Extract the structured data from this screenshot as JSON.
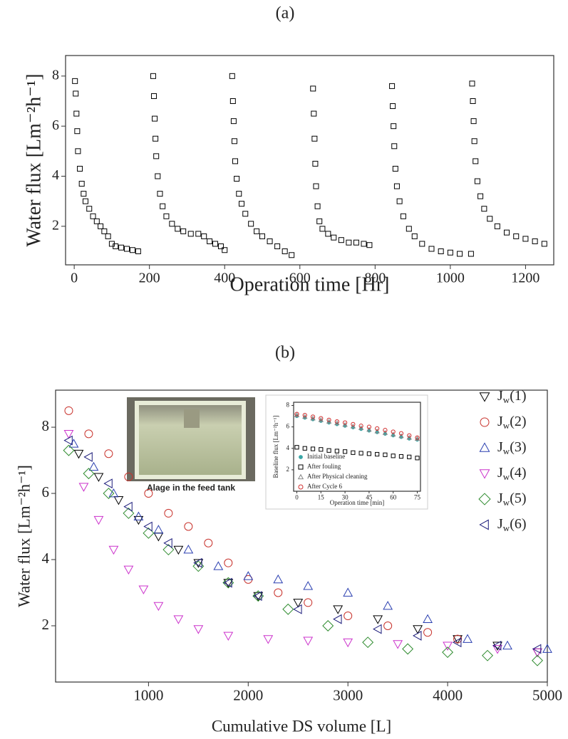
{
  "chart_data": [
    {
      "type": "scatter",
      "panel_label": "(a)",
      "xlabel": "Operation time [Hr]",
      "ylabel": "Water flux [Lm⁻²h⁻¹]",
      "xlim": [
        -23,
        1275
      ],
      "ylim": [
        0.46,
        8.82
      ],
      "xticks": [
        0,
        200,
        400,
        600,
        800,
        1000,
        1200
      ],
      "yticks": [
        2,
        4,
        6,
        8
      ],
      "grid": false,
      "series": [
        {
          "color": "#000000",
          "marker": "square",
          "x": [
            2,
            4,
            6,
            8,
            10,
            15,
            20,
            25,
            30,
            40,
            50,
            60,
            70,
            80,
            90,
            100,
            110,
            125,
            140,
            155,
            170
          ],
          "values": [
            7.8,
            7.3,
            6.5,
            5.8,
            5.0,
            4.3,
            3.7,
            3.3,
            3.0,
            2.7,
            2.4,
            2.2,
            2.0,
            1.8,
            1.6,
            1.3,
            1.2,
            1.15,
            1.1,
            1.05,
            1.0
          ]
        },
        {
          "color": "#000000",
          "marker": "square",
          "x": [
            210,
            212,
            214,
            216,
            218,
            222,
            228,
            235,
            245,
            260,
            275,
            290,
            310,
            330,
            345,
            360,
            375,
            390,
            400
          ],
          "values": [
            8.0,
            7.2,
            6.3,
            5.5,
            4.8,
            4.0,
            3.3,
            2.8,
            2.4,
            2.1,
            1.9,
            1.8,
            1.7,
            1.7,
            1.6,
            1.4,
            1.3,
            1.2,
            1.05
          ]
        },
        {
          "color": "#000000",
          "marker": "square",
          "x": [
            420,
            422,
            424,
            426,
            428,
            432,
            438,
            445,
            455,
            470,
            485,
            500,
            520,
            540,
            560,
            578
          ],
          "values": [
            8.0,
            7.0,
            6.2,
            5.4,
            4.6,
            3.9,
            3.3,
            2.9,
            2.5,
            2.1,
            1.8,
            1.6,
            1.4,
            1.2,
            1.0,
            0.85
          ]
        },
        {
          "color": "#000000",
          "marker": "square",
          "x": [
            635,
            637,
            639,
            641,
            643,
            647,
            652,
            660,
            675,
            690,
            710,
            730,
            750,
            770,
            785
          ],
          "values": [
            7.5,
            6.5,
            5.5,
            4.5,
            3.6,
            2.8,
            2.2,
            1.9,
            1.7,
            1.55,
            1.45,
            1.35,
            1.35,
            1.3,
            1.25
          ]
        },
        {
          "color": "#000000",
          "marker": "square",
          "x": [
            845,
            847,
            849,
            851,
            854,
            858,
            865,
            875,
            890,
            905,
            925,
            950,
            975,
            1000,
            1025,
            1055
          ],
          "values": [
            7.6,
            6.8,
            6.0,
            5.2,
            4.3,
            3.6,
            3.0,
            2.4,
            1.9,
            1.6,
            1.3,
            1.1,
            1.0,
            0.95,
            0.9,
            0.9
          ]
        },
        {
          "color": "#000000",
          "marker": "square",
          "x": [
            1058,
            1060,
            1062,
            1064,
            1067,
            1072,
            1080,
            1090,
            1105,
            1125,
            1150,
            1175,
            1200,
            1225,
            1250
          ],
          "values": [
            7.7,
            7.0,
            6.2,
            5.4,
            4.6,
            3.8,
            3.2,
            2.7,
            2.3,
            2.0,
            1.75,
            1.6,
            1.5,
            1.4,
            1.3
          ]
        }
      ]
    },
    {
      "type": "scatter",
      "panel_label": "(b)",
      "xlabel": "Cumulative DS volume [L]",
      "ylabel": "Water flux [Lm⁻²h⁻¹]",
      "annotation": "Alage in the feed tank",
      "xlim": [
        68,
        5000
      ],
      "ylim": [
        0.3,
        9.12
      ],
      "xticks": [
        1000,
        2000,
        3000,
        4000,
        5000
      ],
      "yticks": [
        2,
        4,
        6,
        8
      ],
      "grid": false,
      "series": [
        {
          "name": "Jw(1)",
          "color": "#000000",
          "marker": "triangle-down",
          "x": [
            300,
            500,
            700,
            900,
            1100,
            1300,
            1500,
            1800,
            2100,
            2500,
            2900,
            3300,
            3700,
            4100,
            4500,
            4900
          ],
          "values": [
            7.2,
            6.5,
            5.8,
            5.2,
            4.7,
            4.3,
            3.9,
            3.3,
            2.9,
            2.7,
            2.5,
            2.2,
            1.9,
            1.6,
            1.4,
            1.2
          ]
        },
        {
          "name": "Jw(2)",
          "color": "#c8322c",
          "marker": "circle",
          "x": [
            200,
            400,
            600,
            800,
            1000,
            1200,
            1400,
            1600,
            1800,
            2000,
            2300,
            2600,
            3000,
            3400,
            3800,
            4100
          ],
          "values": [
            8.5,
            7.8,
            7.2,
            6.5,
            6.0,
            5.4,
            5.0,
            4.5,
            3.9,
            3.4,
            3.0,
            2.7,
            2.3,
            2.0,
            1.8,
            1.6
          ]
        },
        {
          "name": "Jw(3)",
          "color": "#2a3fb0",
          "marker": "triangle-up",
          "x": [
            250,
            450,
            650,
            900,
            1100,
            1400,
            1700,
            2000,
            2300,
            2600,
            3000,
            3400,
            3800,
            4200,
            4600,
            5000
          ],
          "values": [
            7.5,
            6.8,
            6.0,
            5.3,
            4.9,
            4.3,
            3.8,
            3.5,
            3.4,
            3.2,
            3.0,
            2.6,
            2.2,
            1.6,
            1.4,
            1.3
          ]
        },
        {
          "name": "Jw(4)",
          "color": "#cc33cc",
          "marker": "triangle-down",
          "x": [
            200,
            350,
            500,
            650,
            800,
            950,
            1100,
            1300,
            1500,
            1800,
            2200,
            2600,
            3000,
            3500,
            4000,
            4500,
            4900
          ],
          "values": [
            7.8,
            6.2,
            5.2,
            4.3,
            3.7,
            3.1,
            2.6,
            2.2,
            1.9,
            1.7,
            1.6,
            1.55,
            1.5,
            1.45,
            1.4,
            1.3,
            1.2
          ]
        },
        {
          "name": "Jw(5)",
          "color": "#2e8b2e",
          "marker": "diamond",
          "x": [
            200,
            400,
            600,
            800,
            1000,
            1200,
            1500,
            1800,
            2100,
            2400,
            2800,
            3200,
            3600,
            4000,
            4400,
            4900
          ],
          "values": [
            7.3,
            6.6,
            6.0,
            5.4,
            4.8,
            4.3,
            3.8,
            3.3,
            2.9,
            2.5,
            2.0,
            1.5,
            1.3,
            1.2,
            1.1,
            0.95
          ]
        },
        {
          "name": "Jw(6)",
          "color": "#1a1a7a",
          "marker": "triangle-left",
          "x": [
            200,
            400,
            600,
            800,
            1000,
            1200,
            1500,
            1800,
            2100,
            2500,
            2900,
            3300,
            3700,
            4100,
            4500,
            4900
          ],
          "values": [
            7.6,
            7.1,
            6.3,
            5.6,
            5.0,
            4.5,
            3.9,
            3.3,
            2.9,
            2.5,
            2.2,
            1.9,
            1.7,
            1.5,
            1.4,
            1.3
          ]
        }
      ]
    },
    {
      "type": "scatter",
      "xlabel": "Operation time [min]",
      "ylabel": "Baseline flux [Lm⁻²h⁻¹]",
      "xlim": [
        -2,
        77
      ],
      "ylim": [
        0,
        8.3
      ],
      "xticks": [
        0,
        15,
        30,
        45,
        60,
        75
      ],
      "yticks": [
        2,
        4,
        6,
        8
      ],
      "grid": false,
      "x": [
        0,
        5,
        10,
        15,
        20,
        25,
        30,
        35,
        40,
        45,
        50,
        55,
        60,
        65,
        70,
        75
      ],
      "series": [
        {
          "name": "Initial baseline",
          "color": "#3aa6a6",
          "marker": "dot",
          "values": [
            7.0,
            6.85,
            6.7,
            6.55,
            6.4,
            6.25,
            6.1,
            5.95,
            5.8,
            5.65,
            5.5,
            5.35,
            5.2,
            5.05,
            4.9,
            4.8
          ]
        },
        {
          "name": "After fouling",
          "color": "#000000",
          "marker": "square",
          "values": [
            4.1,
            4.0,
            3.95,
            3.9,
            3.8,
            3.75,
            3.7,
            3.6,
            3.55,
            3.5,
            3.45,
            3.4,
            3.3,
            3.25,
            3.2,
            3.1
          ]
        },
        {
          "name": "After Physical cleaning",
          "color": "#888888",
          "marker": "triangle-up",
          "values": [
            7.1,
            6.95,
            6.8,
            6.65,
            6.5,
            6.35,
            6.2,
            6.05,
            5.9,
            5.75,
            5.6,
            5.45,
            5.3,
            5.15,
            5.0,
            4.9
          ]
        },
        {
          "name": "After Cycle 6",
          "color": "#d03030",
          "marker": "circle",
          "values": [
            7.2,
            7.1,
            6.95,
            6.8,
            6.65,
            6.5,
            6.4,
            6.25,
            6.1,
            6.0,
            5.85,
            5.7,
            5.55,
            5.4,
            5.2,
            5.0
          ]
        }
      ]
    }
  ]
}
